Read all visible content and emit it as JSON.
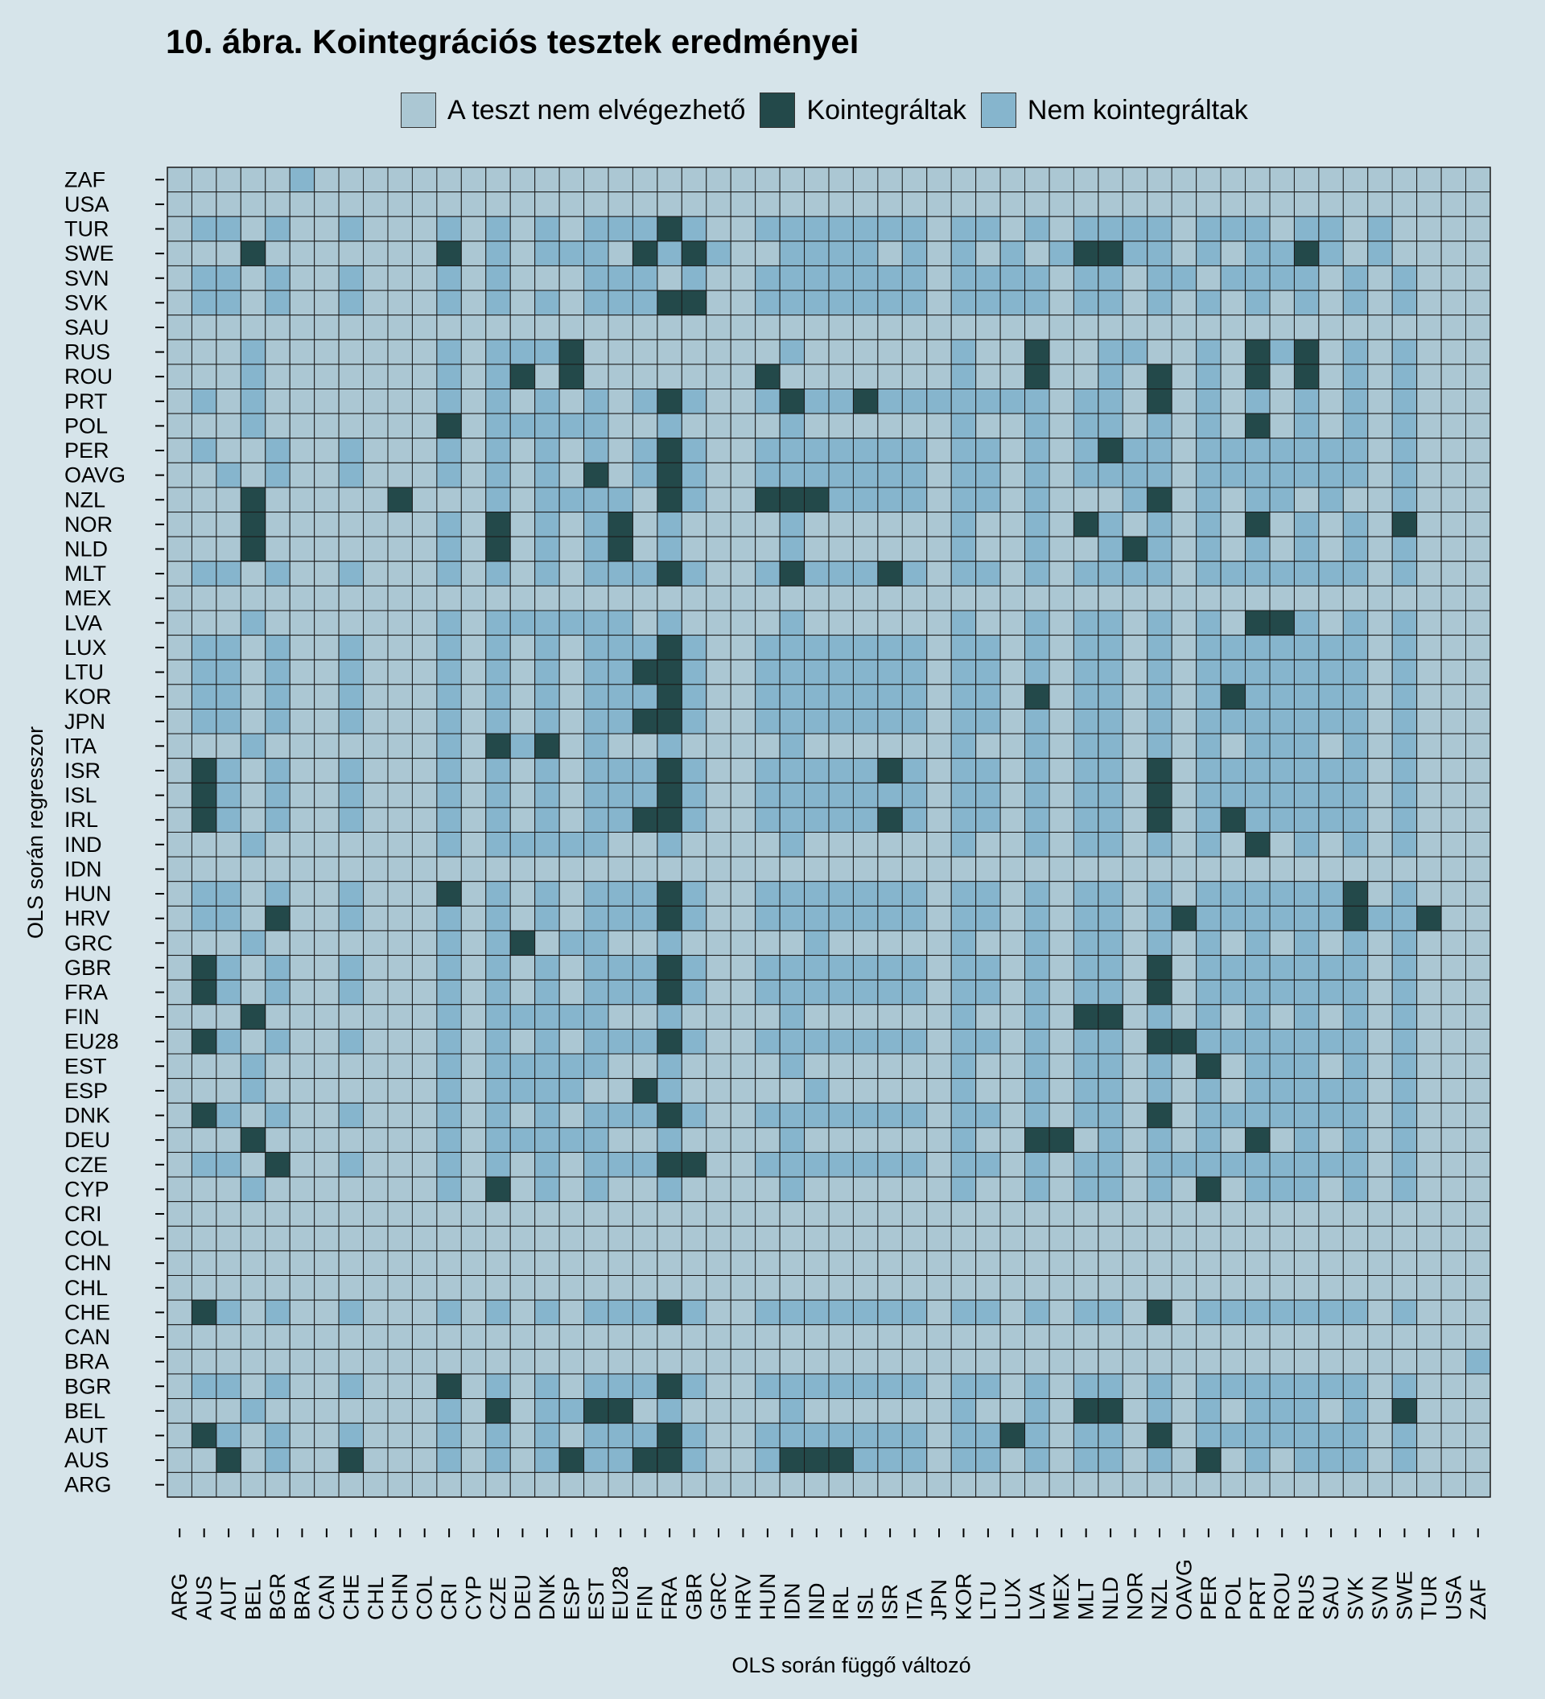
{
  "chart_data": {
    "type": "heatmap",
    "title": "10. ábra. Kointegrációs tesztek eredményei",
    "xlabel": "OLS során függő változó",
    "ylabel": "OLS során regresszor",
    "legend": {
      "placement": "top",
      "entries": [
        {
          "code": 0,
          "label": "A teszt nem elvégezhető",
          "color": "#abc7d3"
        },
        {
          "code": 1,
          "label": "Kointegráltak",
          "color": "#23494a"
        },
        {
          "code": 2,
          "label": "Nem kointegráltak",
          "color": "#86b5cd"
        }
      ]
    },
    "x_categories": [
      "ARG",
      "AUS",
      "AUT",
      "BEL",
      "BGR",
      "BRA",
      "CAN",
      "CHE",
      "CHL",
      "CHN",
      "COL",
      "CRI",
      "CYP",
      "CZE",
      "DEU",
      "DNK",
      "ESP",
      "EST",
      "EU28",
      "FIN",
      "FRA",
      "GBR",
      "GRC",
      "HRV",
      "HUN",
      "IDN",
      "IND",
      "IRL",
      "ISL",
      "ISR",
      "ITA",
      "JPN",
      "KOR",
      "LTU",
      "LUX",
      "LVA",
      "MEX",
      "MLT",
      "NLD",
      "NOR",
      "NZL",
      "OAVG",
      "PER",
      "POL",
      "PRT",
      "ROU",
      "RUS",
      "SAU",
      "SVK",
      "SVN",
      "SWE",
      "TUR",
      "USA",
      "ZAF"
    ],
    "y_categories": [
      "ZAF",
      "USA",
      "TUR",
      "SWE",
      "SVN",
      "SVK",
      "SAU",
      "RUS",
      "ROU",
      "PRT",
      "POL",
      "PER",
      "OAVG",
      "NZL",
      "NOR",
      "NLD",
      "MLT",
      "MEX",
      "LVA",
      "LUX",
      "LTU",
      "KOR",
      "JPN",
      "ITA",
      "ISR",
      "ISL",
      "IRL",
      "IND",
      "IDN",
      "HUN",
      "HRV",
      "GRC",
      "GBR",
      "FRA",
      "FIN",
      "EU28",
      "EST",
      "ESP",
      "DNK",
      "DEU",
      "CZE",
      "CYP",
      "CRI",
      "COL",
      "CHN",
      "CHL",
      "CHE",
      "CAN",
      "BRA",
      "BGR",
      "BEL",
      "AUT",
      "AUS",
      "ARG"
    ],
    "values": [
      "000002000000000000000000000000000000000000000000000000",
      "000000000000000000000000000000000000000000000000000000",
      "022020020002020202221200222222202202022220222022020000",
      "000100000001020222012120022220202020211220202212020000",
      "022020020002020002220200222222202222022022022220202000",
      "022020020002020202221100222222202222022020202020202000",
      "000000000000000000000000000000000000000000000000000000",
      "000200000002022210000000020000002001002200201210202000",
      "000200000002021010000000100000002001002010201010202000",
      "020200000002020202021200212212222222022010202020202000",
      "000200000001022222002000020000002002022020201020202000",
      "020020020002020202021200222222202202021220222222202000",
      "002020020002020201021200222222202202022220222222202000",
      "000100000100020222201200111222202202000210202202002000",
      "000100000002010202102000020000002002012020201020201000",
      "000100000002010202102000020000002002002120202020202000",
      "022020020002020202221200212221202202022220222222202000",
      "000000000000000000000000000000000000000000000000000000",
      "000200000002022222202000020000002002022020201120202000",
      "022020020002020202221200222222202202022020222222202000",
      "022020020002020202211200222222202202022020222222202000",
      "022020020002020202221200222222202201022020212222202000",
      "022020020002020202211200222222202202022020222222202000",
      "000200000002012102002000020000002002022020202220202000",
      "012020020002020202221200222221202202022010222222202000",
      "012020020002020202221200222222202202022010222222202000",
      "012020020002020202211200222221202202022010212222202000",
      "000200000002022222002000020000002002022020201020202000",
      "000000000000000000000000000000000000000000000000000000",
      "022020020001020202221200222222202202022020222222102000",
      "022010020002020202221200222222202202022021222222122100",
      "000200000002021022002000002000002002022020202020202000",
      "012020020002020202221200222222202202022010222222202000",
      "012020020002020202221200222222202202022010222222202000",
      "000100000002022222002000020000002002011020202020202000",
      "012020020002020202221200222222202202022011222222202000",
      "000200000002022222002000020000002002022020102220202000",
      "000200000002022220012000002000002002022020202222202000",
      "012020020002020202221200222222202202022010222222202000",
      "000100000002022222002000020000002001102020201020202000",
      "022010020002020202221100222222202202022022222222202000",
      "000200000002010202002000020000002002022020102220202000",
      "000000000000000000000000000000000000000000000000000000",
      "000000000000000000000000000000000000000000000000000000",
      "000000000000000000000000000000000000000000000000000000",
      "000000000000000000000000000000000000000000000000000000",
      "012020020002020202221200222222202202022010222222202000",
      "000000000000000000000000000000000000000000000000000000",
      "000000000000000000000000000000000000000000000000000002",
      "022020020001020202221200222222202202022020222222202000",
      "000200000002010221102000020000002002011020202220201000",
      "012020020002020202221200222222202212022010222222202000",
      "001020010002020212211200211122202202022020102022202000",
      "000000000000000000000000000000000000000000000000000000"
    ]
  }
}
